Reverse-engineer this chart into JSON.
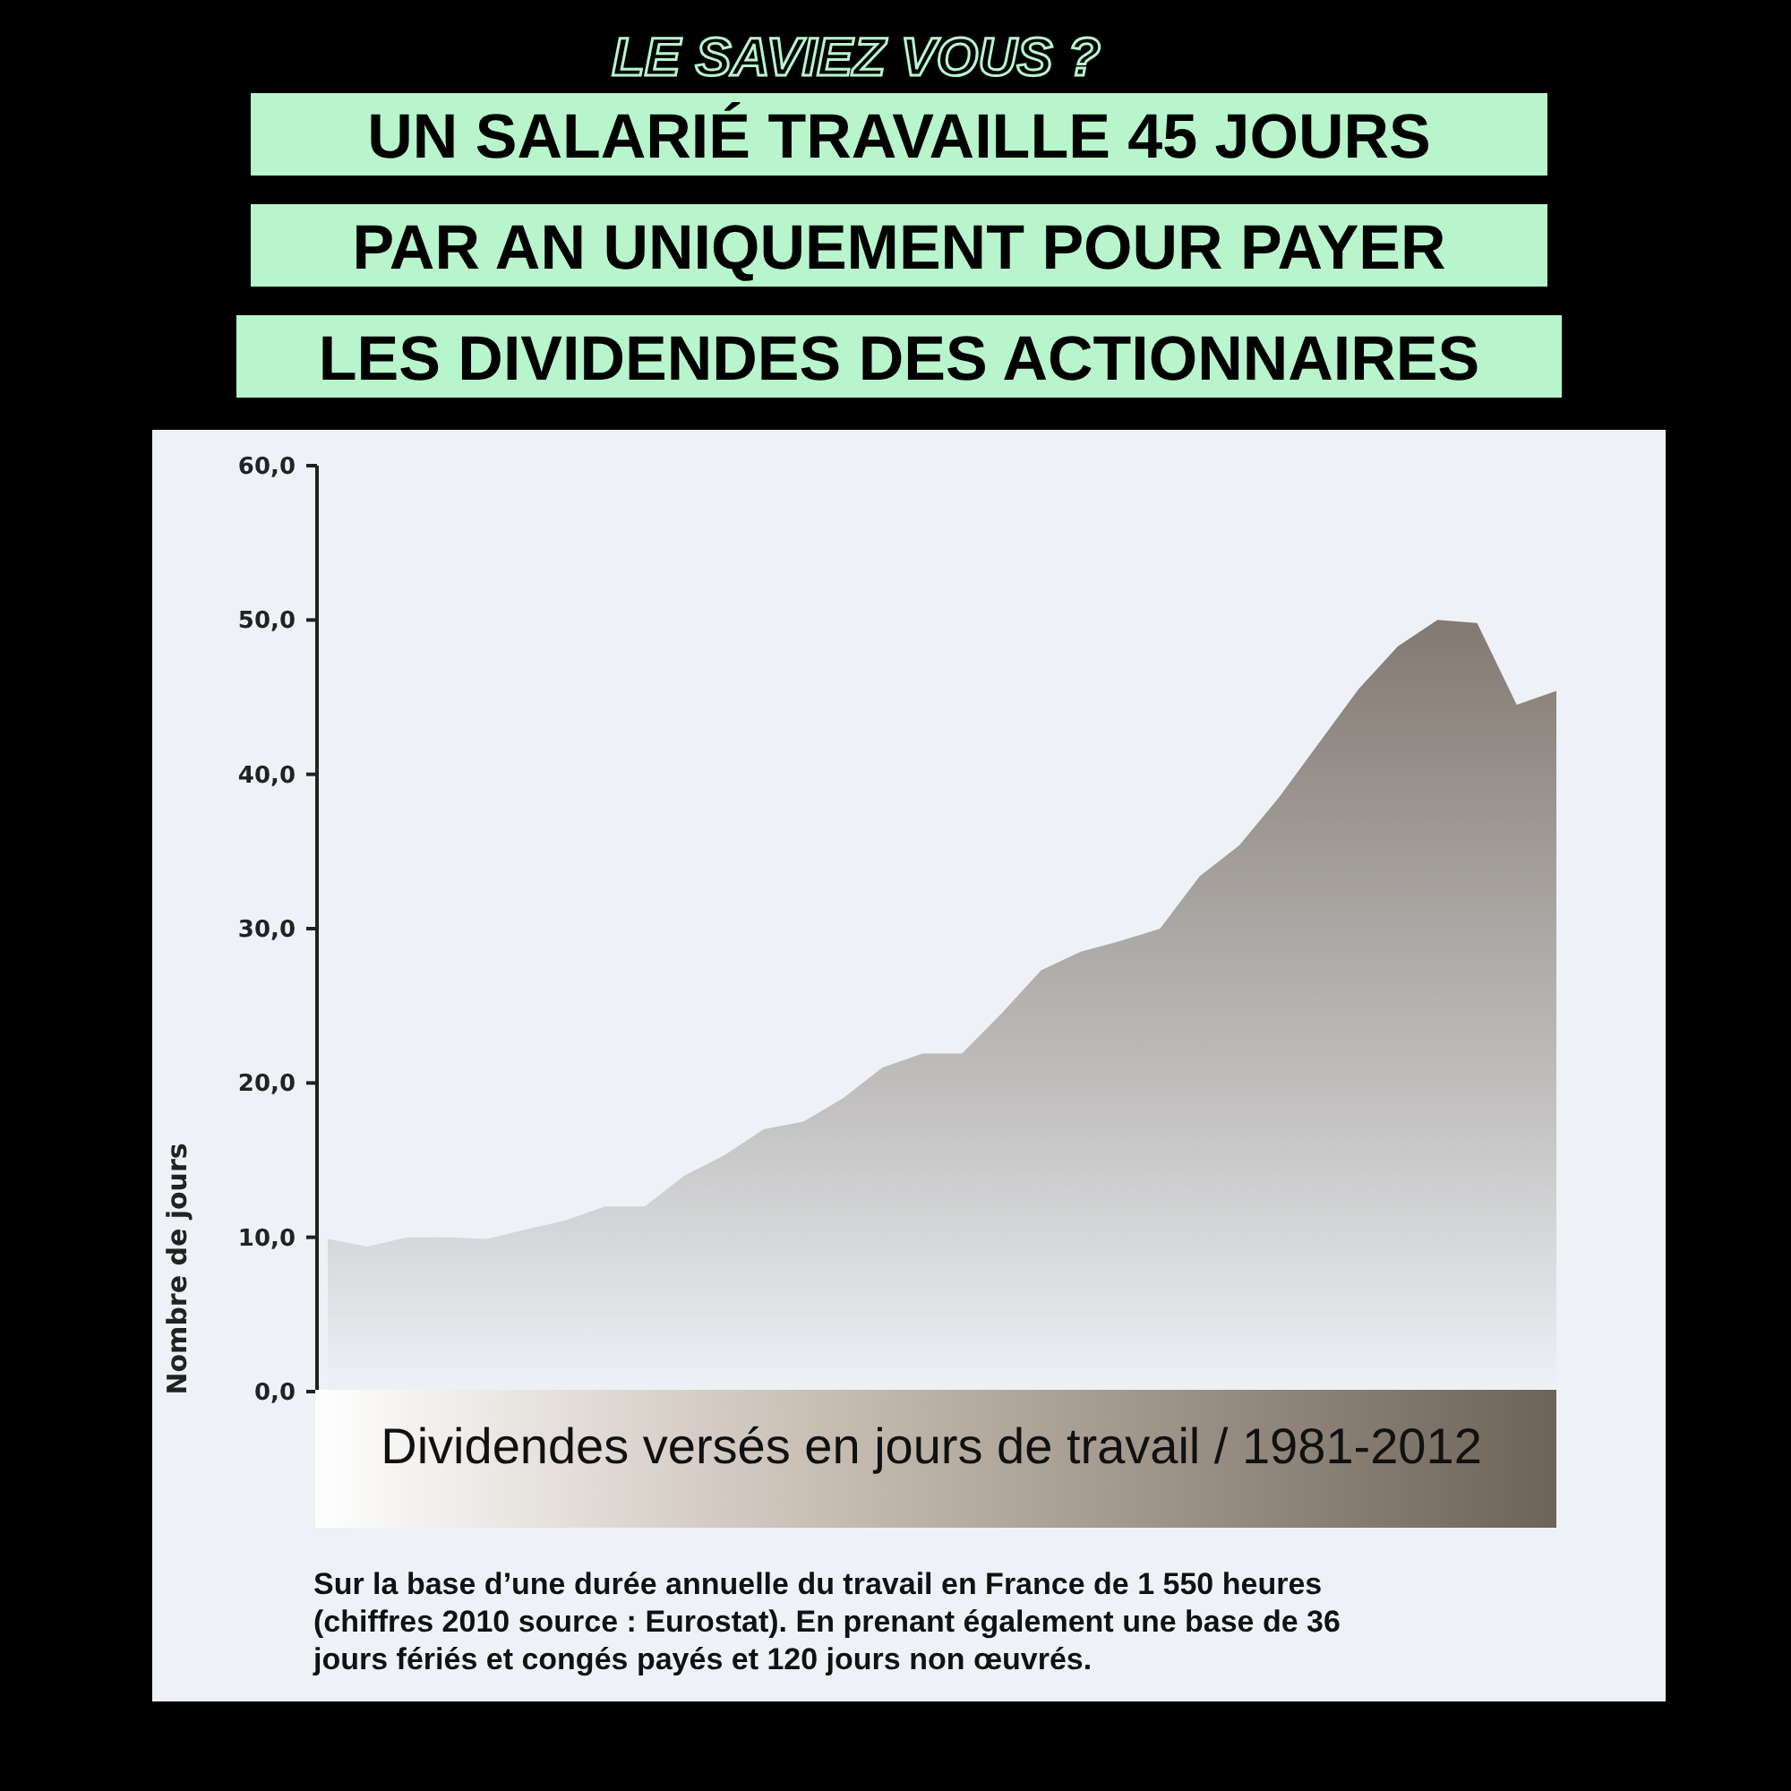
{
  "chart_data": {
    "type": "area",
    "title": "LE SAVIEZ VOUS ?",
    "subtitle": "UN SALARIÉ TRAVAILLE 45 JOURS PAR AN UNIQUEMENT POUR PAYER LES DIVIDENDES DES ACTIONNAIRES",
    "ylabel": "Nombre de jours",
    "annotations": [
      "Dividendes versés en jours de travail / 1981-2012",
      "Sur la base d’une durée annuelle du travail en France de 1 550 heures (chiffres 2010 source : Eurostat). En prenant également une base de 36 jours fériés et congés payés et 120 jours non œuvrés."
    ],
    "categories": [
      null,
      null,
      null,
      null,
      null,
      null,
      null,
      null,
      null,
      null,
      null,
      null,
      null,
      null,
      null,
      null,
      null,
      null,
      null,
      null,
      null,
      null,
      null,
      null,
      null,
      null,
      null,
      null,
      null,
      null,
      null,
      null
    ],
    "series": [
      {
        "color": "#6e6358",
        "values": [
          9.9,
          9.4,
          10.0,
          10.0,
          9.9,
          10.5,
          11.1,
          12.0,
          12.0,
          14.0,
          15.3,
          17.0,
          17.5,
          19.0,
          21.0,
          21.9,
          21.9,
          24.5,
          27.3,
          28.5,
          29.2,
          30.0,
          33.4,
          35.4,
          38.5,
          42.0,
          45.5,
          48.3,
          50.0,
          49.8,
          44.5,
          45.4
        ]
      }
    ],
    "ylim": [
      0,
      60
    ],
    "yticks": [
      {
        "value": 0,
        "label": "0,0"
      },
      {
        "value": 10,
        "label": "10,0"
      },
      {
        "value": 20,
        "label": "20,0"
      },
      {
        "value": 30,
        "label": "30,0"
      },
      {
        "value": 40,
        "label": "40,0"
      },
      {
        "value": 50,
        "label": "50,0"
      },
      {
        "value": 60,
        "label": "60,0"
      }
    ],
    "tick_labels": "y",
    "grid": false
  }
}
